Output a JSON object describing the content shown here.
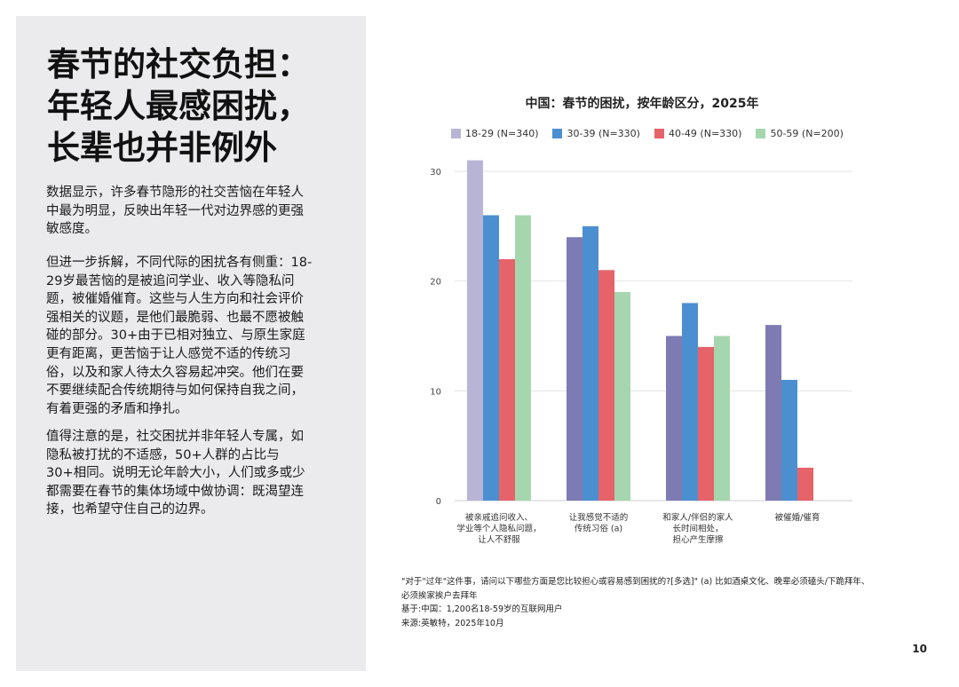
{
  "headline": {
    "lines": [
      "春节的社交负担：",
      "年轻人最感困扰，",
      "长辈也并非例外"
    ]
  },
  "paragraphs": [
    "数据显示，许多春节隐形的社交苦恼在年轻人中最为明显，反映出年轻一代对边界感的更强敏感度。",
    "但进一步拆解，不同代际的困扰各有侧重：18-29岁最苦恼的是被追问学业、收入等隐私问题，被催婚催育。这些与人生方向和社会评价强相关的议题，是他们最脆弱、也最不愿被触碰的部分。30+由于已相对独立、与原生家庭更有距离，更苦恼于让人感觉不适的传统习俗，以及和家人待太久容易起冲突。他们在要不要继续配合传统期待与如何保持自我之间，有着更强的矛盾和挣扎。",
    "值得注意的是，社交困扰并非年轻人专属，如隐私被打扰的不适感，50+人群的占比与30+相同。说明无论年龄大小，人们或多或少都需要在春节的集体场域中做协调：既渴望连接，也希望守住自己的边界。"
  ],
  "chart_data": {
    "type": "bar",
    "title": "中国：春节的困扰，按年龄区分，2025年",
    "xlabel": "",
    "ylabel": "",
    "ylim": [
      0,
      30
    ],
    "yticks": [
      0,
      10,
      20,
      30
    ],
    "grid": true,
    "legend_position": "top",
    "categories": [
      [
        "被亲戚追问收入、",
        "学业等个人隐私问题，",
        "让人不舒服"
      ],
      [
        "让我感觉不适的",
        "传统习俗 (a)"
      ],
      [
        "和家人/伴侣的家人",
        "长时间相处，",
        "担心产生摩擦"
      ],
      [
        "被催婚/催育"
      ]
    ],
    "series": [
      {
        "name": "18-29 (N=340)",
        "color": "#b7b4d6",
        "values": [
          31,
          24,
          15,
          16
        ]
      },
      {
        "name": "30-39 (N=330)",
        "color": "#4c8fd0",
        "values": [
          26,
          25,
          18,
          11
        ]
      },
      {
        "name": "40-49 (N=330)",
        "color": "#e6636a",
        "values": [
          22,
          21,
          14,
          3
        ]
      },
      {
        "name": "50-59 (N=200)",
        "color": "#a6d6ae",
        "values": [
          26,
          19,
          15,
          0
        ]
      }
    ],
    "first_series_colors_by_category": [
      "#b7b4d6",
      "#7e7bb4",
      "#7e7bb4",
      "#7e7bb4"
    ]
  },
  "footnote": {
    "lines": [
      "\"对于\"过年\"这件事，请问以下哪些方面是您比较担心或容易感到困扰的?[多选]\" (a) 比如酒桌文化、晚辈必须磕头/下跪拜年、",
      "必须挨家挨户去拜年",
      "基于:中国：1,200名18-59岁的互联网用户",
      "来源:英敏特，2025年10月"
    ]
  },
  "page_number": "10"
}
